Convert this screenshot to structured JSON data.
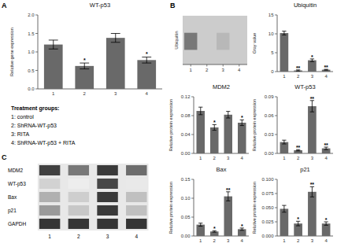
{
  "chart_data": [
    {
      "type": "bar",
      "label": "A",
      "title": "WT-p53",
      "ylabel": "Relative gene expression",
      "categories": [
        "1",
        "2",
        "3",
        "4"
      ],
      "values": [
        1.2,
        0.62,
        1.38,
        0.78
      ],
      "errors": [
        0.12,
        0.08,
        0.12,
        0.08
      ],
      "annotations": [
        null,
        "*",
        null,
        "*"
      ],
      "color": "#696969",
      "ylim": [
        0,
        2.0
      ],
      "yticks": [
        {
          "value": 0,
          "label": "0.0"
        },
        {
          "value": 0.5,
          "label": "0.5"
        },
        {
          "value": 1.0,
          "label": "1.0"
        },
        {
          "value": 1.5,
          "label": "1.5"
        },
        {
          "value": 2.0,
          "label": "2.0"
        }
      ]
    },
    {
      "type": "text",
      "title": "Treatment groups:",
      "lines": [
        "1: control",
        "2: ShRNA-WT-p53",
        "3: RITA",
        "4: ShRNA-WT-p53 + RITA"
      ]
    },
    {
      "type": "heatmap",
      "label": "C",
      "rows": [
        "MDM2",
        "WT-p53",
        "Bax",
        "p21",
        "GAPDH"
      ],
      "columns": [
        "1",
        "2",
        "3",
        "4"
      ],
      "values": [
        [
          0.85,
          0.6,
          0.88,
          0.65
        ],
        [
          0.2,
          0.08,
          0.82,
          0.1
        ],
        [
          0.35,
          0.22,
          0.88,
          0.28
        ],
        [
          0.45,
          0.25,
          0.88,
          0.28
        ],
        [
          0.9,
          0.9,
          0.9,
          0.9
        ]
      ]
    },
    {
      "type": "blot",
      "label": "B",
      "ylabel": "Ubiquitin",
      "categories": [
        "1",
        "2",
        "3",
        "4"
      ],
      "colors": [
        "#787878",
        null,
        "#b8b8b8",
        null
      ]
    },
    {
      "type": "bar",
      "title": "Ubiquitin",
      "ylabel": "Gray value",
      "categories": [
        "1",
        "2",
        "3",
        "4"
      ],
      "values": [
        10.2,
        0.3,
        3.0,
        0.5
      ],
      "errors": [
        0.5,
        0.15,
        0.35,
        0.1
      ],
      "annotations": [
        null,
        "**",
        "*",
        "**"
      ],
      "color": "#696969",
      "ylim": [
        0,
        15
      ],
      "yticks": [
        0,
        5,
        10,
        15
      ]
    },
    {
      "type": "bar",
      "title": "MDM2",
      "ylabel": "Relative protein expression",
      "categories": [
        "1",
        "2",
        "3",
        "4"
      ],
      "values": [
        0.09,
        0.055,
        0.082,
        0.065
      ],
      "errors": [
        0.008,
        0.006,
        0.007,
        0.006
      ],
      "annotations": [
        null,
        "*",
        null,
        "*"
      ],
      "color": "#696969",
      "ylim": [
        0,
        0.12
      ],
      "yticks": [
        {
          "value": 0,
          "label": "0.00"
        },
        0.04,
        0.08,
        0.12
      ]
    },
    {
      "type": "bar",
      "title": "WT-p53",
      "ylabel": "Relative protein expression",
      "categories": [
        "1",
        "2",
        "3",
        "4"
      ],
      "values": [
        0.018,
        0.005,
        0.075,
        0.008
      ],
      "errors": [
        0.003,
        0.001,
        0.009,
        0.002
      ],
      "annotations": [
        null,
        "**",
        "**",
        "**"
      ],
      "color": "#696969",
      "ylim": [
        0,
        0.09
      ],
      "yticks": [
        {
          "value": 0,
          "label": "0.00"
        },
        0.03,
        0.06,
        0.09
      ]
    },
    {
      "type": "bar",
      "title": "Bax",
      "ylabel": "Relative protein expression",
      "categories": [
        "1",
        "2",
        "3",
        "4"
      ],
      "values": [
        0.03,
        0.012,
        0.105,
        0.018
      ],
      "errors": [
        0.004,
        0.002,
        0.012,
        0.003
      ],
      "annotations": [
        null,
        "*",
        "**",
        "*"
      ],
      "color": "#696969",
      "ylim": [
        0,
        0.15
      ],
      "yticks": [
        {
          "value": 0,
          "label": "0.00"
        },
        0.05,
        {
          "value": 0.1,
          "label": "0.10"
        },
        0.15
      ]
    },
    {
      "type": "bar",
      "title": "p21",
      "ylabel": "Relative protein expression",
      "categories": [
        "1",
        "2",
        "3",
        "4"
      ],
      "values": [
        0.048,
        0.022,
        0.078,
        0.022
      ],
      "errors": [
        0.006,
        0.004,
        0.009,
        0.003
      ],
      "annotations": [
        null,
        "*",
        "**",
        "*"
      ],
      "color": "#696969",
      "ylim": [
        0,
        0.1
      ],
      "yticks": [
        {
          "value": 0,
          "label": "0.000"
        },
        0.025,
        {
          "value": 0.05,
          "label": "0.050"
        },
        0.075,
        {
          "value": 0.1,
          "label": "0.100"
        }
      ]
    }
  ]
}
